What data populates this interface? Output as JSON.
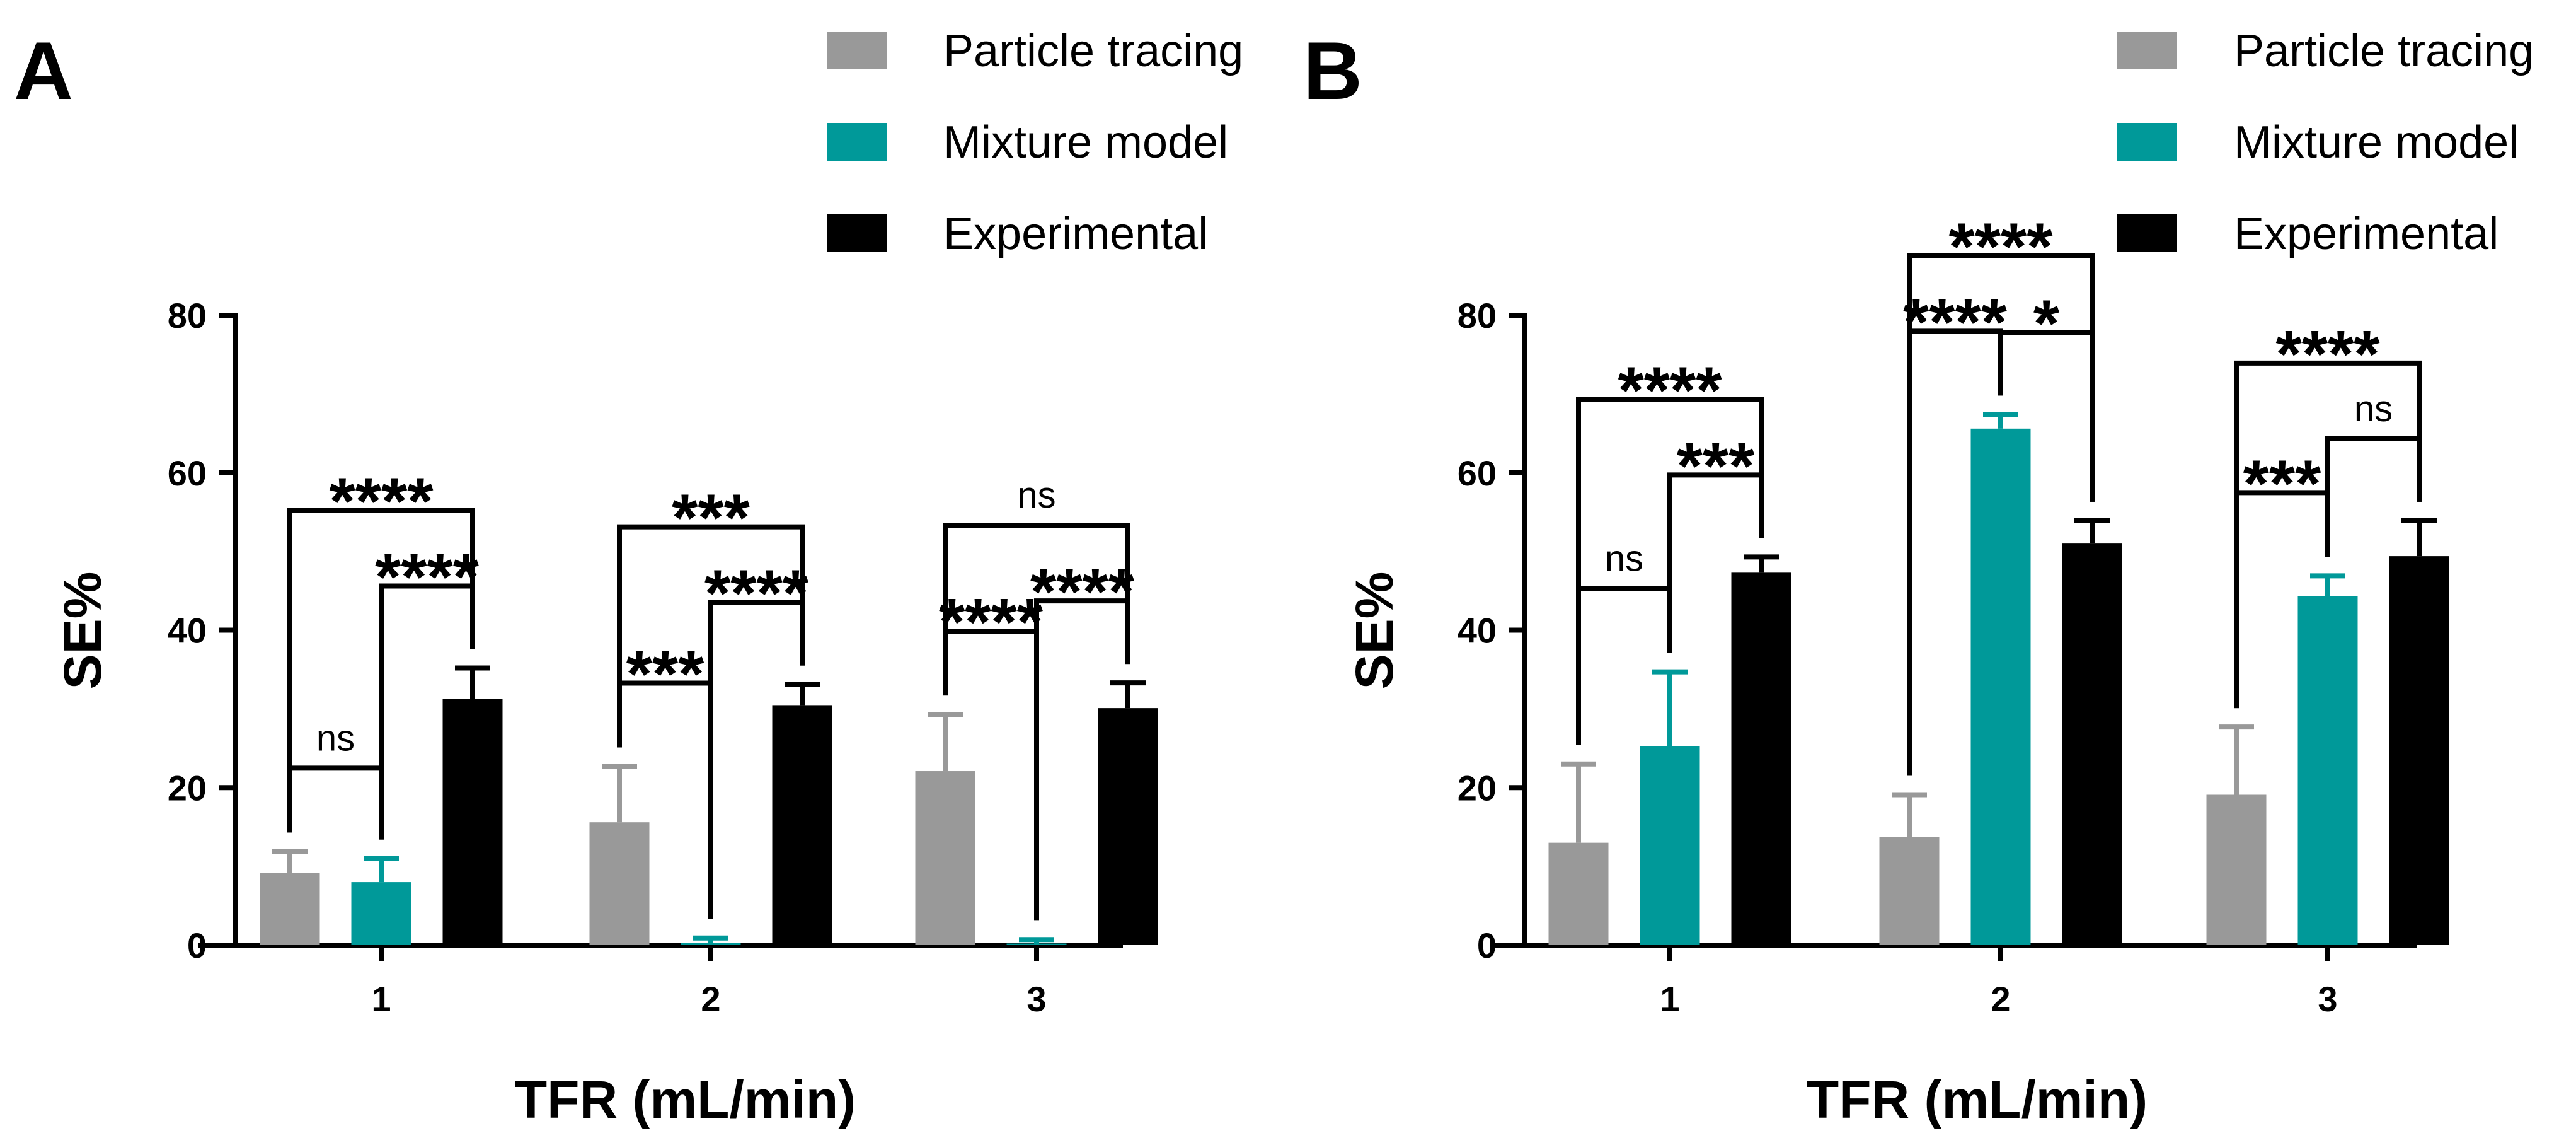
{
  "chart_data": [
    {
      "panel": "A",
      "type": "bar",
      "categories": [
        "1",
        "2",
        "3"
      ],
      "xlabel": "TFR (mL/min)",
      "ylabel": "SE%",
      "ylim": [
        0,
        80
      ],
      "yticks": [
        "0",
        "20",
        "40",
        "60",
        "80"
      ],
      "series": [
        {
          "name": "Particle tracing",
          "color": "#999999",
          "values": [
            9.2,
            15.6,
            22.1
          ],
          "errors": [
            2.7,
            7.1,
            7.2
          ]
        },
        {
          "name": "Mixture model",
          "color": "#009999",
          "values": [
            8.0,
            0.3,
            0.2
          ],
          "errors": [
            3.0,
            0.6,
            0.5
          ]
        },
        {
          "name": "Experimental",
          "color": "#000000",
          "values": [
            31.3,
            30.4,
            30.1
          ],
          "errors": [
            3.9,
            2.7,
            3.2
          ]
        }
      ],
      "significance": [
        {
          "category": "1",
          "between": [
            0,
            1
          ],
          "label": "ns"
        },
        {
          "category": "1",
          "between": [
            1,
            2
          ],
          "label": "****"
        },
        {
          "category": "1",
          "between": [
            0,
            2
          ],
          "label": "****"
        },
        {
          "category": "2",
          "between": [
            1,
            2
          ],
          "label": "****"
        },
        {
          "category": "2",
          "between": [
            0,
            1
          ],
          "label": "***"
        },
        {
          "category": "2",
          "between": [
            0,
            2
          ],
          "label": "***"
        },
        {
          "category": "3",
          "between": [
            0,
            1
          ],
          "label": "****"
        },
        {
          "category": "3",
          "between": [
            1,
            2
          ],
          "label": "****"
        },
        {
          "category": "3",
          "between": [
            0,
            2
          ],
          "label": "ns"
        }
      ]
    },
    {
      "panel": "B",
      "type": "bar",
      "categories": [
        "1",
        "2",
        "3"
      ],
      "xlabel": "TFR (mL/min)",
      "ylabel": "SE%",
      "ylim": [
        0,
        80
      ],
      "yticks": [
        "0",
        "20",
        "40",
        "60",
        "80"
      ],
      "series": [
        {
          "name": "Particle tracing",
          "color": "#999999",
          "values": [
            13.0,
            13.7,
            19.1
          ],
          "errors": [
            10.0,
            5.4,
            8.6
          ]
        },
        {
          "name": "Mixture model",
          "color": "#009999",
          "values": [
            25.3,
            65.6,
            44.3
          ],
          "errors": [
            9.4,
            1.8,
            2.6
          ]
        },
        {
          "name": "Experimental",
          "color": "#000000",
          "values": [
            47.3,
            51.0,
            49.4
          ],
          "errors": [
            2.0,
            2.9,
            4.5
          ]
        }
      ],
      "significance": [
        {
          "category": "1",
          "between": [
            0,
            1
          ],
          "label": "ns"
        },
        {
          "category": "1",
          "between": [
            1,
            2
          ],
          "label": "***"
        },
        {
          "category": "1",
          "between": [
            0,
            2
          ],
          "label": "****"
        },
        {
          "category": "2",
          "between": [
            1,
            2
          ],
          "label": "*"
        },
        {
          "category": "2",
          "between": [
            0,
            1
          ],
          "label": "****"
        },
        {
          "category": "2",
          "between": [
            0,
            2
          ],
          "label": "****"
        },
        {
          "category": "3",
          "between": [
            0,
            1
          ],
          "label": "***"
        },
        {
          "category": "3",
          "between": [
            1,
            2
          ],
          "label": "ns"
        },
        {
          "category": "3",
          "between": [
            0,
            2
          ],
          "label": "****"
        }
      ]
    }
  ]
}
